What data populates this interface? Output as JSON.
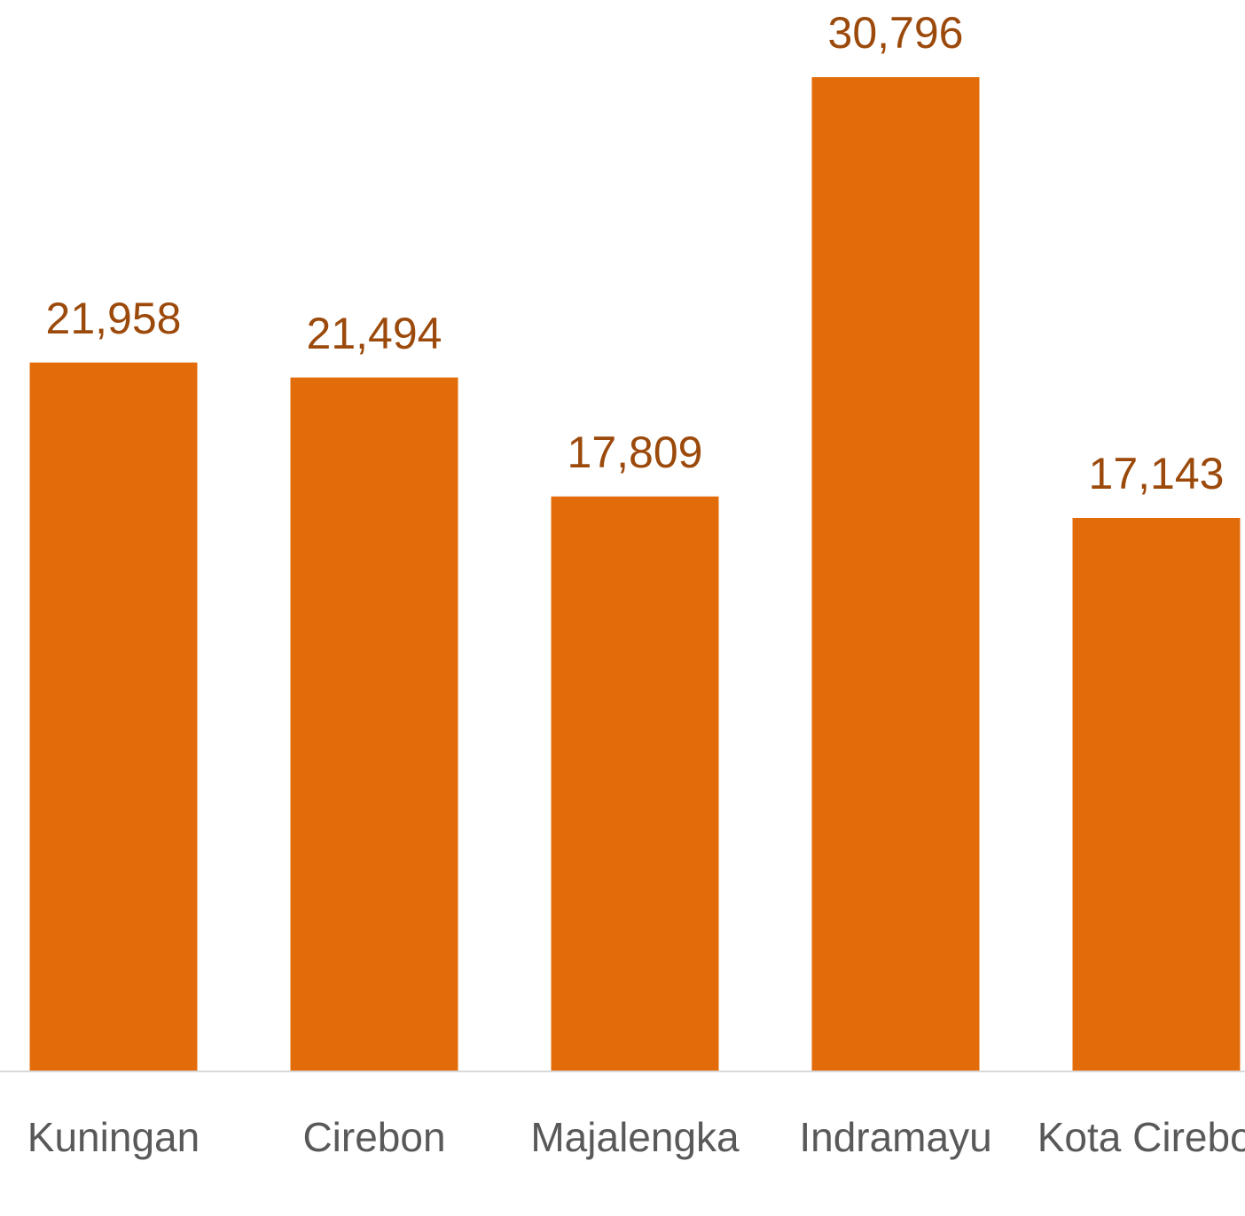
{
  "chart_data": {
    "type": "bar",
    "categories": [
      "Kuningan",
      "Cirebon",
      "Majalengka",
      "Indramayu",
      "Kota Cirebon"
    ],
    "values": [
      21958,
      21494,
      17809,
      30796,
      17143
    ],
    "value_labels": [
      "21,958",
      "21,494",
      "17,809",
      "30,796",
      "17,143"
    ],
    "color": "#e36c0a"
  }
}
